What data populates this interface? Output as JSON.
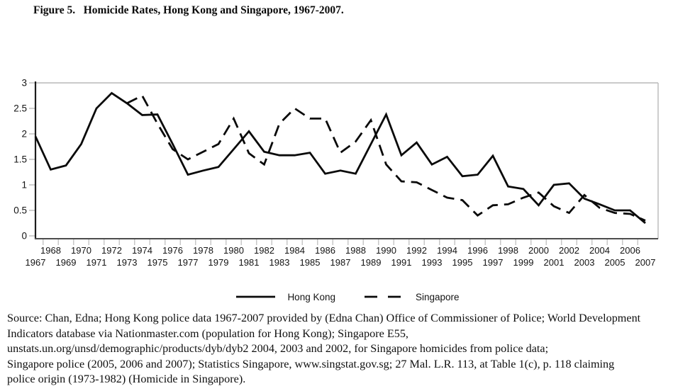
{
  "figure": {
    "title": "Figure 5.   Homicide Rates, Hong Kong and Singapore, 1967-2007."
  },
  "chart_data": {
    "type": "line",
    "title": "Homicide Rates, Hong Kong and Singapore, 1967-2007",
    "xlabel": "",
    "ylabel": "",
    "ylim": [
      0,
      3
    ],
    "yticks": [
      0,
      0.5,
      1,
      1.5,
      2,
      2.5,
      3
    ],
    "ytick_labels": [
      "0",
      "0.5",
      "1",
      "1.5",
      "2",
      "2.5",
      "3"
    ],
    "grid": "top-and-right-border-only",
    "legend_position": "bottom",
    "x": [
      1967,
      1968,
      1969,
      1970,
      1971,
      1972,
      1973,
      1974,
      1975,
      1976,
      1977,
      1978,
      1979,
      1980,
      1981,
      1982,
      1983,
      1984,
      1985,
      1986,
      1987,
      1988,
      1989,
      1990,
      1991,
      1992,
      1993,
      1994,
      1995,
      1996,
      1997,
      1998,
      1999,
      2000,
      2001,
      2002,
      2003,
      2004,
      2005,
      2006,
      2007
    ],
    "series": [
      {
        "name": "Hong Kong",
        "style": "solid",
        "values": [
          1.95,
          1.3,
          1.38,
          1.8,
          2.5,
          2.8,
          2.6,
          2.37,
          2.38,
          1.8,
          1.2,
          1.28,
          1.35,
          1.7,
          2.05,
          1.65,
          1.58,
          1.58,
          1.63,
          1.22,
          1.28,
          1.22,
          1.8,
          2.38,
          1.58,
          1.83,
          1.4,
          1.55,
          1.17,
          1.2,
          1.57,
          0.97,
          0.92,
          0.6,
          1.0,
          1.03,
          0.73,
          0.62,
          0.5,
          0.5,
          0.25
        ]
      },
      {
        "name": "Singapore",
        "style": "dashed",
        "values": [
          null,
          null,
          null,
          null,
          null,
          null,
          2.6,
          2.75,
          2.2,
          1.7,
          1.5,
          1.65,
          1.8,
          2.3,
          1.62,
          1.4,
          2.2,
          2.5,
          2.3,
          2.3,
          1.63,
          1.85,
          2.27,
          1.4,
          1.07,
          1.05,
          0.9,
          0.75,
          0.7,
          0.4,
          0.6,
          0.62,
          0.75,
          0.85,
          0.58,
          0.45,
          0.8,
          0.55,
          0.45,
          0.43,
          0.3
        ]
      }
    ]
  },
  "source": {
    "lines": [
      "Source: Chan, Edna; Hong Kong police data 1967-2007 provided by (Edna Chan) Office of Commissioner of Police; World Development",
      "Indicators database via Nationmaster.com (population for Hong Kong); Singapore E55,",
      "unstats.un.org/unsd/demographic/products/dyb/dyb2 2004, 2003 and 2002, for Singapore homicides from police data;",
      "Singapore police (2005, 2006 and 2007); Statistics Singapore, www.singstat.gov.sg; 27 Mal. L.R. 113, at Table 1(c), p. 118 claiming",
      "police origin (1973-1982) (Homicide in Singapore)."
    ]
  }
}
